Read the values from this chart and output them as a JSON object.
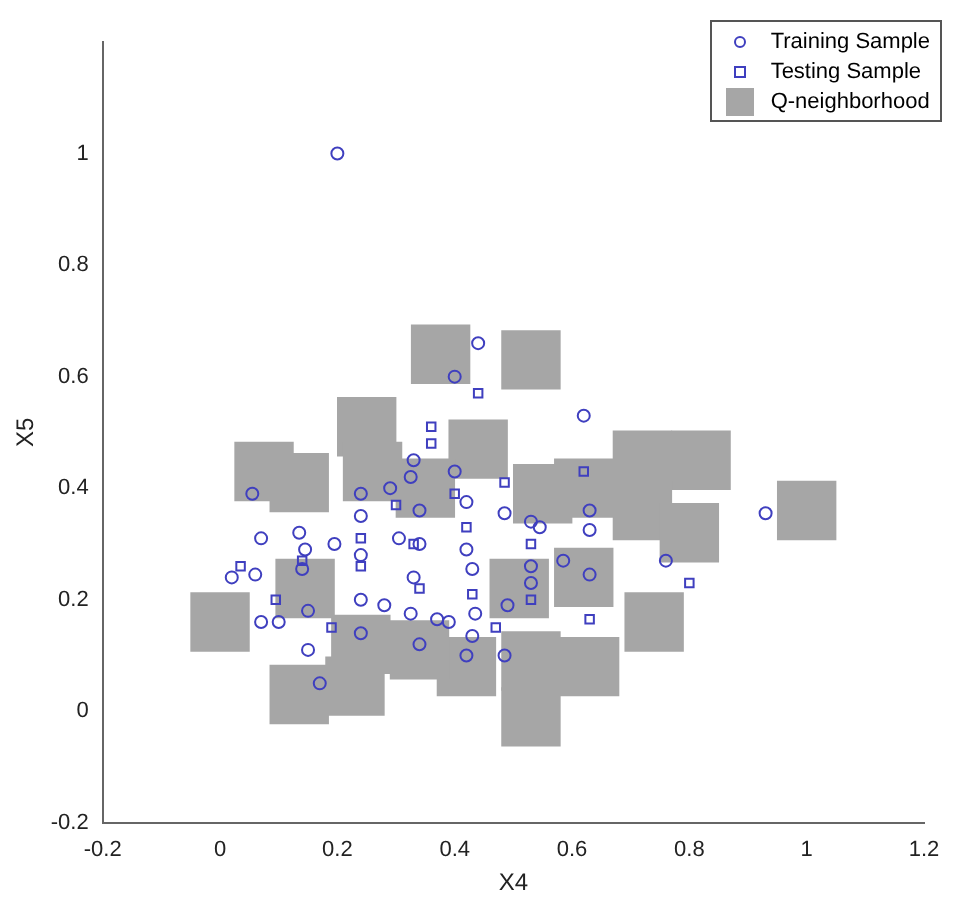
{
  "chart_data": {
    "type": "scatter",
    "xlabel": "X4",
    "ylabel": "X5",
    "xlim": [
      -0.2,
      1.2
    ],
    "ylim": [
      -0.2,
      1.2
    ],
    "xticks": [
      -0.2,
      0,
      0.2,
      0.4,
      0.6,
      0.8,
      1,
      1.2
    ],
    "yticks": [
      -0.2,
      0,
      0.2,
      0.4,
      0.6,
      0.8,
      1
    ],
    "grid": false,
    "legend": "top right",
    "series": [
      {
        "name": "Q-neighborhood",
        "color": "#a6a6a6",
        "marker": "square",
        "x": [
          0.376,
          0.53,
          0.25,
          0.075,
          0.135,
          0.72,
          0.82,
          0.72,
          0.8,
          1.0,
          0.0,
          0.74,
          0.53,
          0.63,
          0.53,
          0.135,
          0.23,
          0.42,
          0.44,
          0.62,
          0.62,
          0.145,
          0.24,
          0.34,
          0.55,
          0.35,
          0.26,
          0.51
        ],
        "values": [
          0.64,
          0.63,
          0.51,
          0.43,
          0.41,
          0.45,
          0.45,
          0.36,
          0.32,
          0.36,
          0.16,
          0.16,
          0.09,
          0.08,
          -0.01,
          0.03,
          0.045,
          0.08,
          0.47,
          0.4,
          0.24,
          0.22,
          0.12,
          0.11,
          0.39,
          0.4,
          0.43,
          0.22
        ]
      },
      {
        "name": "Training Sample",
        "color": "#3f3fbf",
        "marker": "circle",
        "x": [
          0.055,
          0.07,
          0.02,
          0.06,
          0.07,
          0.1,
          0.135,
          0.145,
          0.14,
          0.15,
          0.15,
          0.17,
          0.195,
          0.24,
          0.24,
          0.24,
          0.24,
          0.24,
          0.29,
          0.305,
          0.325,
          0.33,
          0.34,
          0.34,
          0.33,
          0.325,
          0.34,
          0.4,
          0.42,
          0.42,
          0.43,
          0.435,
          0.43,
          0.39,
          0.485,
          0.49,
          0.53,
          0.545,
          0.53,
          0.53,
          0.585,
          0.63,
          0.63,
          0.63,
          0.485,
          0.42,
          0.37,
          0.28,
          0.2,
          0.62,
          0.93,
          0.76,
          0.44,
          0.4
        ],
        "values": [
          0.39,
          0.31,
          0.24,
          0.245,
          0.16,
          0.16,
          0.32,
          0.29,
          0.255,
          0.18,
          0.11,
          0.05,
          0.3,
          0.39,
          0.35,
          0.28,
          0.2,
          0.14,
          0.4,
          0.31,
          0.42,
          0.45,
          0.36,
          0.3,
          0.24,
          0.175,
          0.12,
          0.43,
          0.375,
          0.29,
          0.255,
          0.175,
          0.135,
          0.16,
          0.355,
          0.19,
          0.34,
          0.33,
          0.26,
          0.23,
          0.27,
          0.36,
          0.325,
          0.245,
          0.1,
          0.1,
          0.165,
          0.19,
          1.0,
          0.53,
          0.355,
          0.27,
          0.66,
          0.6
        ]
      },
      {
        "name": "Testing Sample",
        "color": "#3f3fbf",
        "marker": "square",
        "x": [
          0.36,
          0.36,
          0.485,
          0.035,
          0.14,
          0.24,
          0.24,
          0.33,
          0.34,
          0.4,
          0.42,
          0.43,
          0.53,
          0.53,
          0.63,
          0.8,
          0.3,
          0.19,
          0.47,
          0.095,
          0.62,
          0.44
        ],
        "values": [
          0.51,
          0.48,
          0.41,
          0.26,
          0.27,
          0.31,
          0.26,
          0.3,
          0.22,
          0.39,
          0.33,
          0.21,
          0.3,
          0.2,
          0.165,
          0.23,
          0.37,
          0.15,
          0.15,
          0.2,
          0.43,
          0.57
        ]
      }
    ]
  }
}
